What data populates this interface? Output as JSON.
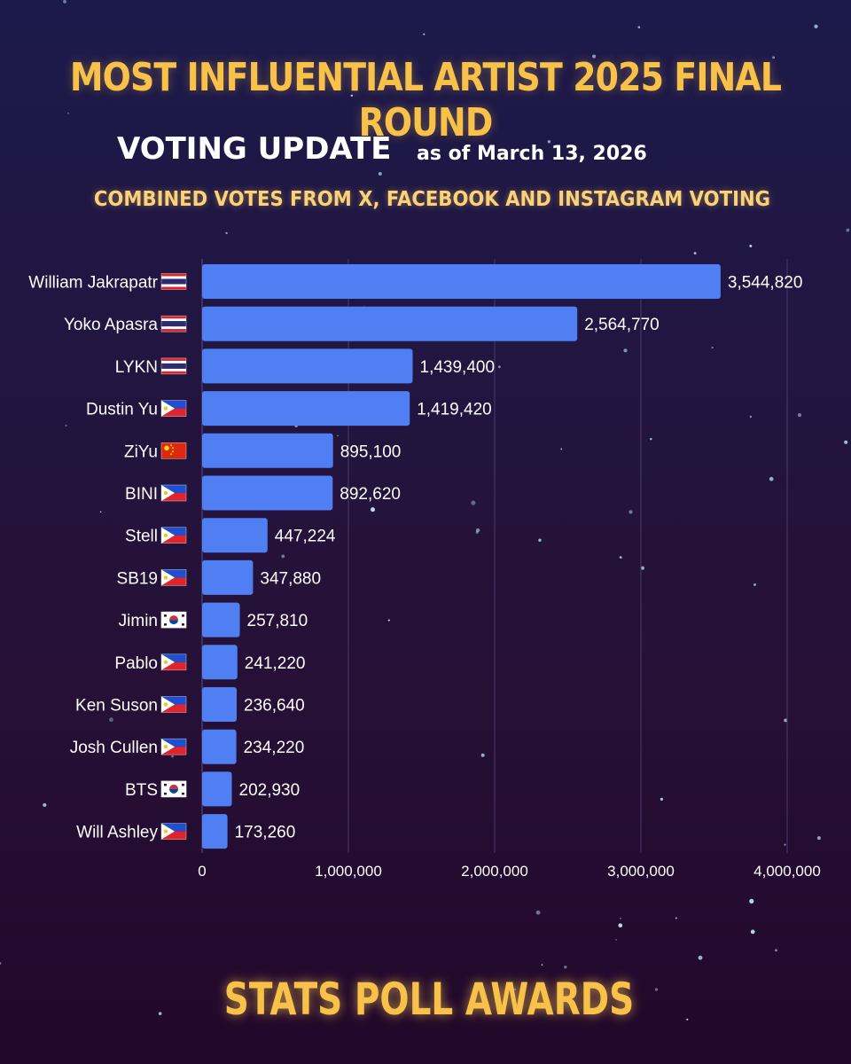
{
  "header": {
    "title": "MOST INFLUENTIAL ARTIST 2025 FINAL ROUND",
    "update_label": "VOTING UPDATE",
    "as_of": "as of March 13, 2026",
    "subtitle": "COMBINED VOTES FROM X, FACEBOOK AND INSTAGRAM VOTING"
  },
  "footer": {
    "brand": "STATS POLL AWARDS"
  },
  "colors": {
    "bar": "#4f7ff2",
    "title": "#f7c14a",
    "grid": "#4a3a6a"
  },
  "chart_data": {
    "type": "bar",
    "orientation": "horizontal",
    "categories": [
      "William Jakrapatr",
      "Yoko Apasra",
      "LYKN",
      "Dustin Yu",
      "ZiYu",
      "BINI",
      "Stell",
      "SB19",
      "Jimin",
      "Pablo",
      "Ken Suson",
      "Josh Cullen",
      "BTS",
      "Will Ashley"
    ],
    "flags": [
      "thailand-flag-icon",
      "thailand-flag-icon",
      "thailand-flag-icon",
      "philippines-flag-icon",
      "china-flag-icon",
      "philippines-flag-icon",
      "philippines-flag-icon",
      "philippines-flag-icon",
      "south-korea-flag-icon",
      "philippines-flag-icon",
      "philippines-flag-icon",
      "philippines-flag-icon",
      "south-korea-flag-icon",
      "philippines-flag-icon"
    ],
    "values": [
      3544820,
      2564770,
      1439400,
      1419420,
      895100,
      892620,
      447224,
      347880,
      257810,
      241220,
      236640,
      234220,
      202930,
      173260
    ],
    "value_labels": [
      "3,544,820",
      "2,564,770",
      "1,439,400",
      "1,419,420",
      "895,100",
      "892,620",
      "447,224",
      "347,880",
      "257,810",
      "241,220",
      "236,640",
      "234,220",
      "202,930",
      "173,260"
    ],
    "xlim": [
      0,
      4000000
    ],
    "x_ticks": [
      0,
      1000000,
      2000000,
      3000000,
      4000000
    ],
    "x_tick_labels": [
      "0",
      "1,000,000",
      "2,000,000",
      "3,000,000",
      "4,000,000"
    ],
    "grid": true
  }
}
